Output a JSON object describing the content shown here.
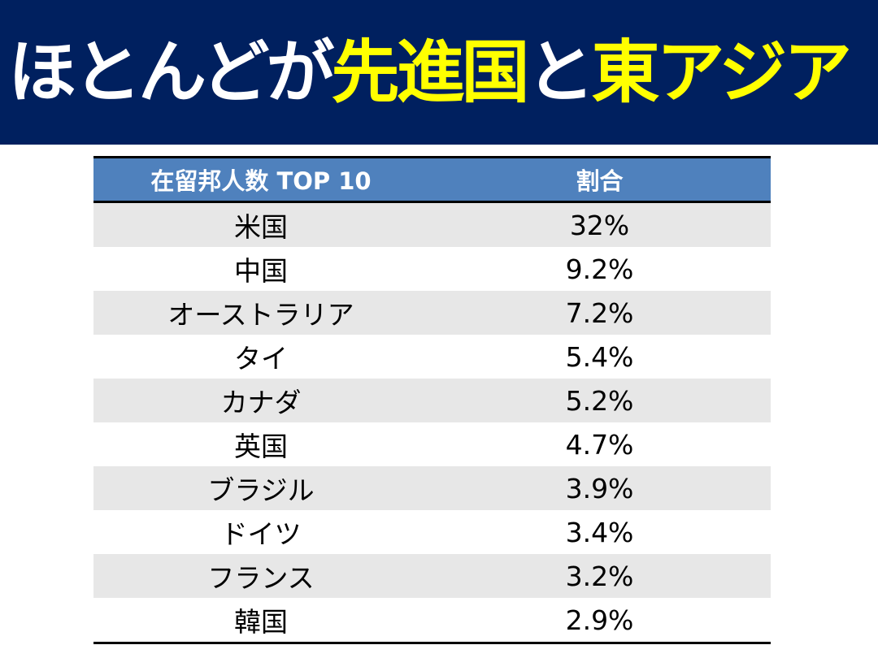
{
  "title": {
    "part1": "ほとんどが",
    "part2": "先進国",
    "part3": "と",
    "part4": "東アジア"
  },
  "colors": {
    "banner": "#00205f",
    "title_white": "#ffffff",
    "title_highlight": "#ffff00",
    "header_bg": "#4f81bd",
    "row_stripe": "#e7e7e7"
  },
  "table": {
    "headers": [
      "在留邦人数 TOP 10",
      "割合"
    ],
    "rows": [
      {
        "country": "米国",
        "share": "32%"
      },
      {
        "country": "中国",
        "share": "9.2%"
      },
      {
        "country": "オーストラリア",
        "share": "7.2%"
      },
      {
        "country": "タイ",
        "share": "5.4%"
      },
      {
        "country": "カナダ",
        "share": "5.2%"
      },
      {
        "country": "英国",
        "share": "4.7%"
      },
      {
        "country": "ブラジル",
        "share": "3.9%"
      },
      {
        "country": "ドイツ",
        "share": "3.4%"
      },
      {
        "country": "フランス",
        "share": "3.2%"
      },
      {
        "country": "韓国",
        "share": "2.9%"
      }
    ]
  }
}
